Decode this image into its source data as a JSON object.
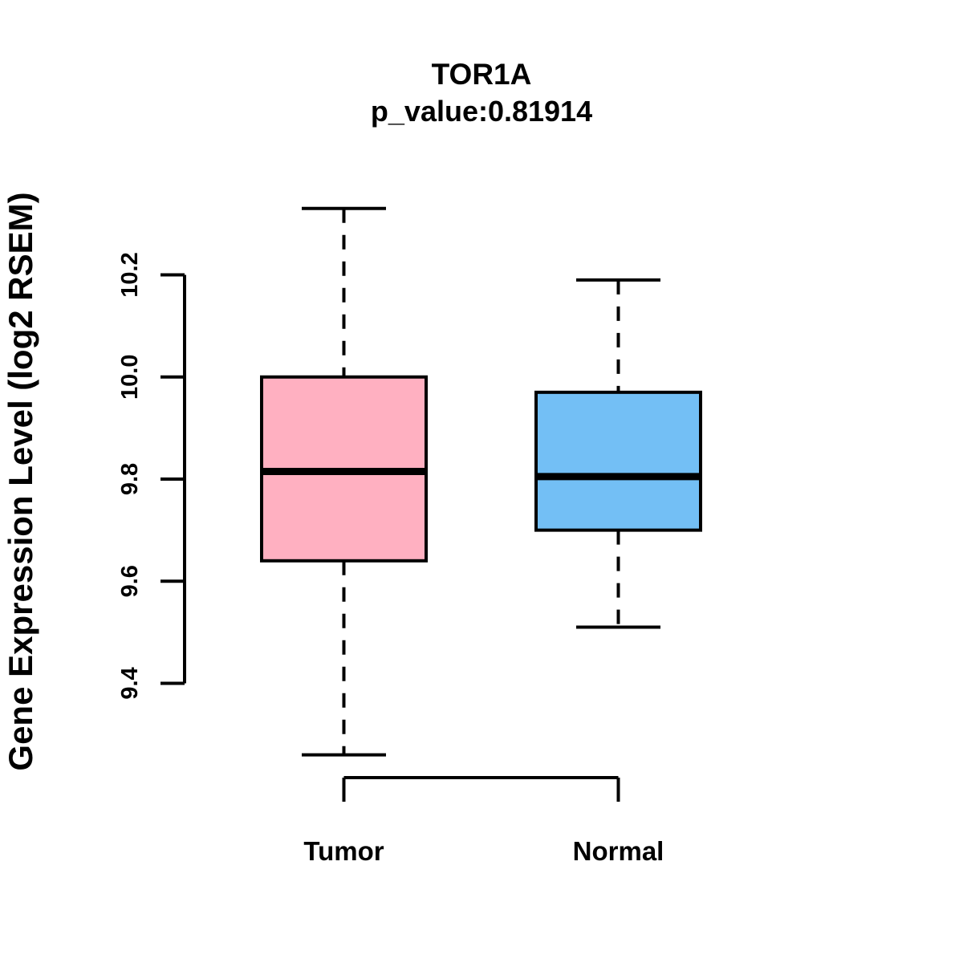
{
  "header": {
    "title": "TOR1A",
    "subtitle": "p_value:0.81914"
  },
  "chart_data": {
    "type": "boxplot",
    "title": "TOR1A",
    "subtitle": "p_value:0.81914",
    "p_value": 0.81914,
    "xlabel": "",
    "ylabel": "Gene Expression Level (log2 RSEM)",
    "categories": [
      "Tumor",
      "Normal"
    ],
    "yticks": [
      9.4,
      9.6,
      9.8,
      10.0,
      10.2
    ],
    "ytick_labels": [
      "9.4",
      "9.6",
      "9.8",
      "10.0",
      "10.2"
    ],
    "ylim": [
      9.26,
      10.33
    ],
    "series": [
      {
        "name": "Tumor",
        "color": "#FFB0C1",
        "whisker_low": 9.26,
        "q1": 9.64,
        "median": 9.815,
        "q3": 10.0,
        "whisker_high": 10.33
      },
      {
        "name": "Normal",
        "color": "#73BFF5",
        "whisker_low": 9.51,
        "q1": 9.7,
        "median": 9.805,
        "q3": 9.97,
        "whisker_high": 10.19
      }
    ],
    "layout_hints": {
      "grid": false,
      "legend": false,
      "orientation": "vertical",
      "box_border_color": "#000000",
      "median_color": "#000000",
      "whisker_style": "dashed",
      "background": "#ffffff"
    }
  }
}
